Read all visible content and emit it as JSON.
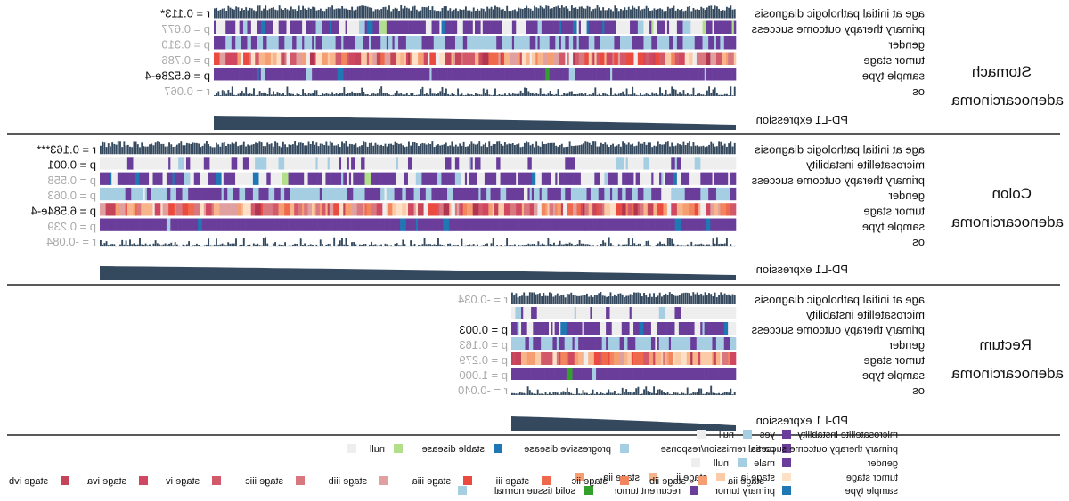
{
  "chart_data": {
    "type": "heatmap",
    "mirrored": true,
    "panels": [
      {
        "name": "Stomach adenocarcinoma",
        "name_lines": [
          "Stomach",
          "adenocarcinoma"
        ],
        "rows": [
          {
            "label": "age at initial pathologic diagnosis",
            "kind": "bars",
            "stat": "r = 0.113*",
            "significant": true
          },
          {
            "label": "primary therapy outcome success",
            "kind": "categorical",
            "palette": "therapy",
            "stat": "p = 0.677",
            "significant": false
          },
          {
            "label": "gender",
            "kind": "categorical",
            "palette": "gender",
            "stat": "p = 0.310",
            "significant": false
          },
          {
            "label": "tumor stage",
            "kind": "categorical",
            "palette": "stage",
            "stat": "p = 0.786",
            "significant": false
          },
          {
            "label": "sample type",
            "kind": "categorical",
            "palette": "sample",
            "stat": "p = 6.528e-4",
            "significant": true
          },
          {
            "label": "os",
            "kind": "sparse-bars",
            "stat": "r = 0.067",
            "significant": false
          }
        ],
        "expression_label": "PD-L1 expression"
      },
      {
        "name": "Colon adenocarcinoma",
        "name_lines": [
          "Colon",
          "adenocarcinoma"
        ],
        "rows": [
          {
            "label": "age at initial pathologic diagnosis",
            "kind": "bars",
            "stat": "r = 0.163***",
            "significant": true
          },
          {
            "label": "microsatellite instability",
            "kind": "categorical",
            "palette": "msi",
            "stat": "p = 0.001",
            "significant": true
          },
          {
            "label": "primary therapy outcome success",
            "kind": "categorical",
            "palette": "therapy",
            "stat": "p = 0.558",
            "significant": false
          },
          {
            "label": "gender",
            "kind": "categorical",
            "palette": "gender",
            "stat": "p = 0.063",
            "significant": false
          },
          {
            "label": "tumor stage",
            "kind": "categorical",
            "palette": "stage",
            "stat": "p = 6.584e-4",
            "significant": true
          },
          {
            "label": "sample type",
            "kind": "categorical",
            "palette": "sample",
            "stat": "p = 0.239",
            "significant": false
          },
          {
            "label": "os",
            "kind": "sparse-bars",
            "stat": "r = -0.084",
            "significant": false
          }
        ],
        "expression_label": "PD-L1 expression"
      },
      {
        "name": "Rectum adenocarcinoma",
        "name_lines": [
          "Rectum",
          "adenocarcinoma"
        ],
        "rows": [
          {
            "label": "age at initial pathologic diagnosis",
            "kind": "bars",
            "stat": "r = -0.034",
            "significant": false
          },
          {
            "label": "microsatellite instability",
            "kind": "categorical",
            "palette": "msi",
            "stat": "",
            "significant": false
          },
          {
            "label": "primary therapy outcome success",
            "kind": "categorical",
            "palette": "therapy",
            "stat": "p = 0.003",
            "significant": true
          },
          {
            "label": "gender",
            "kind": "categorical",
            "palette": "gender",
            "stat": "p = 0.163",
            "significant": false
          },
          {
            "label": "tumor stage",
            "kind": "categorical",
            "palette": "stage",
            "stat": "p = 0.279",
            "significant": false
          },
          {
            "label": "sample type",
            "kind": "categorical",
            "palette": "sample",
            "stat": "p = 1.000",
            "significant": false
          },
          {
            "label": "os",
            "kind": "sparse-bars",
            "stat": "r = -0.040",
            "significant": false
          }
        ],
        "expression_label": "PD-L1 expression"
      }
    ],
    "legend": [
      {
        "title": "microsatellite instability",
        "entries": [
          {
            "label": "no",
            "color": "#6a3d9a"
          },
          {
            "label": "yes",
            "color": "#a6cee3"
          },
          {
            "label": "null",
            "color": "#eeeeee"
          }
        ]
      },
      {
        "title": "primary therapy outcome success",
        "entries": [
          {
            "label": "complete remission/response",
            "color": "#6a3d9a"
          },
          {
            "label": "partial remission/response",
            "color": "#a6cee3"
          },
          {
            "label": "progressive disease",
            "color": "#1f78b4"
          },
          {
            "label": "stable disease",
            "color": "#b2df8a"
          },
          {
            "label": "null",
            "color": "#eeeeee"
          }
        ]
      },
      {
        "title": "gender",
        "entries": [
          {
            "label": "female",
            "color": "#6a3d9a"
          },
          {
            "label": "male",
            "color": "#a6cee3"
          },
          {
            "label": "null",
            "color": "#eeeeee"
          }
        ]
      },
      {
        "title": "tumor stage",
        "entries": [
          {
            "label": "stage i",
            "color": "#fde0c5"
          },
          {
            "label": "stage ia",
            "color": "#facba6"
          },
          {
            "label": "stage ii",
            "color": "#f8b58b"
          },
          {
            "label": "stage iia",
            "color": "#f59e72"
          },
          {
            "label": "stage iib",
            "color": "#f2855d"
          },
          {
            "label": "stage iic",
            "color": "#ef6a4c"
          },
          {
            "label": "stage iii",
            "color": "#eb4a40"
          },
          {
            "label": "stage iiia",
            "color": "#e0a0a0"
          },
          {
            "label": "stage iiib",
            "color": "#d9777f"
          },
          {
            "label": "stage iiic",
            "color": "#d2596a"
          },
          {
            "label": "stage iv",
            "color": "#cf4760"
          },
          {
            "label": "stage iva",
            "color": "#c4455a"
          },
          {
            "label": "stage ivb",
            "color": "#b03550"
          },
          {
            "label": "null",
            "color": "#eeeeee"
          }
        ]
      },
      {
        "title": "sample type",
        "entries": [
          {
            "label": "metastatic",
            "color": "#1f78b4"
          },
          {
            "label": "primary tumor",
            "color": "#6a3d9a"
          },
          {
            "label": "recurrent tumor",
            "color": "#33a02c"
          },
          {
            "label": "solid tissue normal",
            "color": "#a6cee3"
          }
        ]
      }
    ],
    "colors": {
      "bar": "#34495e",
      "significant_text": "#111111",
      "nonsignificant_text": "#aaaaaa",
      "null": "#eeeeee"
    }
  }
}
